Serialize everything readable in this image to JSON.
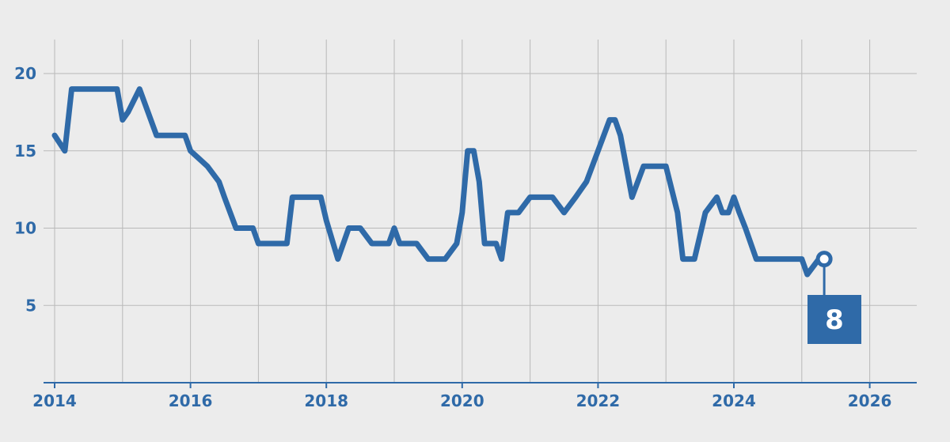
{
  "chart_data": {
    "type": "line",
    "title": "",
    "xlabel": "",
    "ylabel": "",
    "xlim": [
      2014,
      2026.5
    ],
    "ylim": [
      0,
      22
    ],
    "x_ticks": [
      2014,
      2015,
      2016,
      2017,
      2018,
      2019,
      2020,
      2021,
      2022,
      2023,
      2024,
      2025,
      2026
    ],
    "x_tick_labels": [
      "2014",
      "2016",
      "2018",
      "2020",
      "2022",
      "2024",
      "2026"
    ],
    "x_tick_label_values": [
      2014,
      2016,
      2018,
      2020,
      2022,
      2024,
      2026
    ],
    "y_ticks": [
      5,
      10,
      15,
      20
    ],
    "y_tick_labels": [
      "5",
      "10",
      "15",
      "20"
    ],
    "grid": true,
    "line_color": "#2f6aa8",
    "background": "#ececec",
    "callout": {
      "x": 2025.33,
      "y": 8,
      "label": "8"
    },
    "series": [
      {
        "x": [
          2014.0,
          2014.15,
          2014.25,
          2014.5,
          2014.75,
          2014.92,
          2015.0,
          2015.08,
          2015.25,
          2015.5,
          2015.75,
          2015.92,
          2016.0,
          2016.25,
          2016.42,
          2016.5,
          2016.67,
          2016.92,
          2017.0,
          2017.25,
          2017.42,
          2017.5,
          2017.83,
          2017.92,
          2018.0,
          2018.17,
          2018.33,
          2018.5,
          2018.67,
          2018.75,
          2018.92,
          2019.0,
          2019.08,
          2019.33,
          2019.5,
          2019.58,
          2019.75,
          2019.92,
          2020.0,
          2020.08,
          2020.17,
          2020.25,
          2020.33,
          2020.5,
          2020.58,
          2020.67,
          2020.83,
          2021.0,
          2021.17,
          2021.33,
          2021.5,
          2021.67,
          2021.75,
          2021.83,
          2022.0,
          2022.17,
          2022.25,
          2022.33,
          2022.5,
          2022.67,
          2022.75,
          2022.92,
          2023.0,
          2023.17,
          2023.25,
          2023.42,
          2023.58,
          2023.75,
          2023.83,
          2023.92,
          2024.0,
          2024.08,
          2024.17,
          2024.33,
          2024.42,
          2024.58,
          2024.83,
          2025.0,
          2025.08,
          2025.25,
          2025.33
        ],
        "y": [
          16,
          15,
          19,
          19,
          19,
          19,
          17,
          17.5,
          19,
          16,
          16,
          16,
          15,
          14,
          13,
          12,
          10,
          10,
          9,
          9,
          9,
          12,
          12,
          12,
          10.5,
          8,
          10,
          10,
          9,
          9,
          9,
          10,
          9,
          9,
          8,
          8,
          8,
          9,
          11,
          15,
          15,
          13,
          9,
          9,
          8,
          11,
          11,
          12,
          12,
          12,
          11,
          12,
          12.5,
          13,
          15,
          17,
          17,
          16,
          12,
          14,
          14,
          14,
          14,
          11,
          8,
          8,
          11,
          12,
          11,
          11,
          12,
          11,
          10,
          8,
          8,
          8,
          8,
          8,
          7,
          8,
          8
        ]
      }
    ]
  }
}
